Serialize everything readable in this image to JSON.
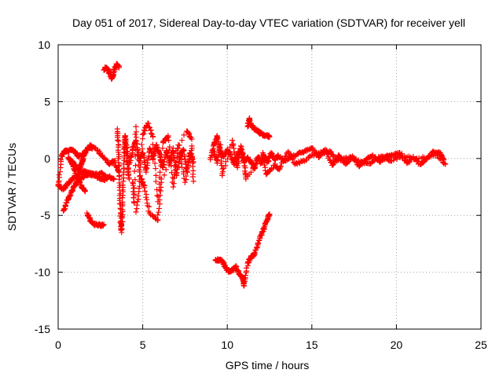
{
  "chart_data": {
    "type": "scatter",
    "title": "Day 051 of 2017, Sidereal Day-to-day VTEC variation (SDTVAR) for receiver yell",
    "xlabel": "GPS time / hours",
    "ylabel": "SDTVAR / TECUs",
    "xlim": [
      0,
      25
    ],
    "ylim": [
      -15,
      10
    ],
    "x_ticks": [
      0,
      5,
      10,
      15,
      20,
      25
    ],
    "x_tick_labels": [
      "0",
      "5",
      "10",
      "15",
      "20",
      "25"
    ],
    "y_ticks": [
      -15,
      -10,
      -5,
      0,
      5,
      10
    ],
    "y_tick_labels": [
      "-15",
      "-10",
      "-5",
      "0",
      "5",
      "10"
    ],
    "grid": true,
    "marker": "+",
    "marker_color": "#ff0000",
    "series": [
      {
        "name": "SDTVAR",
        "segments": [
          {
            "x": [
              0.0,
              0.2,
              0.4,
              0.6,
              0.8,
              1.0,
              1.2,
              1.5,
              1.8,
              2.2,
              2.6,
              3.0,
              3.3,
              3.6
            ],
            "y": [
              -2.4,
              0.2,
              0.7,
              0.6,
              0.8,
              0.6,
              0.2,
              0.4,
              1.0,
              0.9,
              0.3,
              -0.5,
              -0.2,
              -1.2
            ]
          },
          {
            "x": [
              0.0,
              0.3,
              0.6,
              0.9,
              1.2,
              1.5,
              1.8,
              2.1,
              2.4,
              2.7,
              3.0,
              3.3
            ],
            "y": [
              -2.3,
              -2.7,
              -2.2,
              -1.7,
              -1.4,
              -1.1,
              -1.3,
              -1.5,
              -1.7,
              -1.9,
              -1.6,
              -1.8
            ]
          },
          {
            "x": [
              0.3,
              0.5,
              0.7,
              0.9,
              1.1,
              1.3,
              1.6,
              1.9,
              2.2,
              2.5,
              2.8
            ],
            "y": [
              -4.6,
              -3.9,
              -3.2,
              -2.6,
              -2.1,
              -1.8,
              -1.5,
              -1.3,
              -1.4,
              -1.3,
              -1.5
            ]
          },
          {
            "x": [
              0.8,
              1.0,
              1.2,
              1.3,
              1.4,
              1.5,
              1.7,
              1.9,
              2.0
            ],
            "y": [
              -0.2,
              -0.6,
              -1.0,
              -0.8,
              -0.3,
              0.2,
              0.7,
              1.2,
              0.9
            ]
          },
          {
            "x": [
              0.6,
              0.8,
              1.0,
              1.2,
              1.4,
              1.6
            ],
            "y": [
              0.1,
              -0.4,
              -1.1,
              -1.9,
              -2.5,
              -2.9
            ]
          },
          {
            "x": [
              1.7,
              1.9,
              2.1,
              2.3,
              2.5,
              2.7
            ],
            "y": [
              -4.8,
              -5.4,
              -5.8,
              -5.8,
              -5.9,
              -5.8
            ]
          },
          {
            "x": [
              2.7,
              2.85,
              3.0,
              3.15,
              3.25,
              3.35,
              3.5,
              3.6
            ],
            "y": [
              7.8,
              8.0,
              7.7,
              7.0,
              7.3,
              8.0,
              8.3,
              8.0
            ]
          },
          {
            "x": [
              3.5,
              3.55,
              3.6,
              3.65,
              3.7,
              3.75,
              3.8,
              3.85,
              3.9,
              3.95,
              4.0,
              4.1,
              4.2
            ],
            "y": [
              2.6,
              1.0,
              -1.2,
              -3.5,
              -5.5,
              -6.5,
              -4.5,
              -2.0,
              0.5,
              2.0,
              1.2,
              -0.5,
              -1.8
            ]
          },
          {
            "x": [
              4.0,
              4.2,
              4.4,
              4.6,
              4.8,
              5.0,
              5.2,
              5.4,
              5.6,
              5.8,
              6.0,
              6.2,
              6.4,
              6.6,
              6.8,
              7.0,
              7.2,
              7.4,
              7.6,
              7.8,
              8.0
            ],
            "y": [
              1.5,
              -0.5,
              0.8,
              1.6,
              -0.2,
              0.5,
              -1.2,
              0.9,
              -0.1,
              1.2,
              0.3,
              -0.8,
              0.7,
              -0.4,
              0.9,
              -1.5,
              0.2,
              0.8,
              -1.1,
              0.5,
              -0.3
            ]
          },
          {
            "x": [
              4.4,
              4.5,
              4.6,
              4.8,
              5.0,
              5.3,
              5.6,
              5.9,
              6.2,
              6.5,
              6.8,
              7.1,
              7.5,
              7.9,
              8.0
            ],
            "y": [
              -2.1,
              -3.9,
              2.8,
              -2.0,
              2.1,
              3.1,
              1.9,
              -3.8,
              1.4,
              2.0,
              -2.5,
              1.2,
              -2.1,
              1.1,
              -2.0
            ]
          },
          {
            "x": [
              4.6,
              4.9,
              5.1,
              5.4,
              5.9,
              6.1,
              7.6,
              7.9
            ],
            "y": [
              -4.7,
              -1.8,
              -2.4,
              -4.8,
              -5.4,
              -1.8,
              2.4,
              1.7
            ]
          },
          {
            "x": [
              9.0,
              9.2,
              9.4,
              9.6,
              9.8,
              10.0,
              10.2,
              10.4,
              10.6,
              10.8,
              11.0,
              11.2,
              11.4,
              11.6,
              11.8,
              12.0,
              12.2,
              12.4,
              12.6,
              12.8,
              13.0,
              13.4,
              13.8,
              14.2,
              14.6,
              15.0,
              15.4,
              15.8,
              16.2,
              16.6,
              17.0,
              17.4,
              17.8,
              18.2,
              18.6,
              19.0,
              19.4,
              19.8,
              20.2,
              20.6,
              21.0,
              21.4,
              21.8,
              22.2,
              22.6,
              22.8
            ],
            "y": [
              -0.1,
              1.2,
              2.0,
              0.5,
              0.2,
              0.8,
              0.3,
              -0.5,
              0.3,
              0.8,
              -0.2,
              0.1,
              -0.3,
              -0.9,
              0.1,
              -0.4,
              0.2,
              -0.3,
              0.5,
              -0.1,
              0.3,
              -0.2,
              0.2,
              0.4,
              0.7,
              0.9,
              0.1,
              0.8,
              -0.6,
              0.3,
              -0.5,
              0.2,
              -0.7,
              -0.1,
              0.3,
              -0.3,
              0.2,
              0.3,
              0.5,
              -0.4,
              0.1,
              -0.5,
              0.0,
              0.6,
              0.5,
              -0.1
            ]
          },
          {
            "x": [
              9.2,
              9.4,
              9.6,
              9.7,
              10.3,
              10.6,
              10.8,
              11.0,
              11.1,
              12.1,
              12.3,
              12.8,
              13.1,
              13.6,
              14.0,
              14.5,
              15.2,
              15.6,
              16.1,
              16.5,
              17.2,
              17.9,
              18.5,
              19.1,
              19.6,
              20.3,
              21.2,
              22.4,
              22.9
            ],
            "y": [
              0.6,
              -0.4,
              1.2,
              -1.5,
              1.6,
              -0.8,
              1.1,
              -0.3,
              -1.8,
              0.5,
              -1.4,
              -0.6,
              -0.9,
              0.6,
              -0.5,
              -0.2,
              0.4,
              0.5,
              0.6,
              -0.2,
              0.1,
              -0.3,
              -0.4,
              0.2,
              -0.2,
              0.2,
              0.0,
              0.3,
              -0.5
            ]
          },
          {
            "x": [
              11.2,
              11.3,
              11.4,
              11.6,
              11.8,
              12.0,
              12.2,
              12.4,
              12.5
            ],
            "y": [
              2.8,
              3.5,
              3.0,
              2.6,
              2.4,
              2.2,
              2.0,
              2.0,
              1.9
            ]
          },
          {
            "x": [
              9.3,
              9.5,
              9.7,
              9.9,
              10.1,
              10.3,
              10.5,
              10.7,
              10.9,
              11.0,
              11.2,
              11.4,
              11.6,
              11.8,
              12.0,
              12.2,
              12.4,
              12.5
            ],
            "y": [
              -8.9,
              -8.9,
              -9.0,
              -9.6,
              -10.0,
              -9.8,
              -9.5,
              -10.2,
              -10.5,
              -11.2,
              -9.2,
              -8.6,
              -8.5,
              -7.6,
              -6.7,
              -6.0,
              -5.2,
              -4.9
            ]
          }
        ]
      }
    ]
  }
}
